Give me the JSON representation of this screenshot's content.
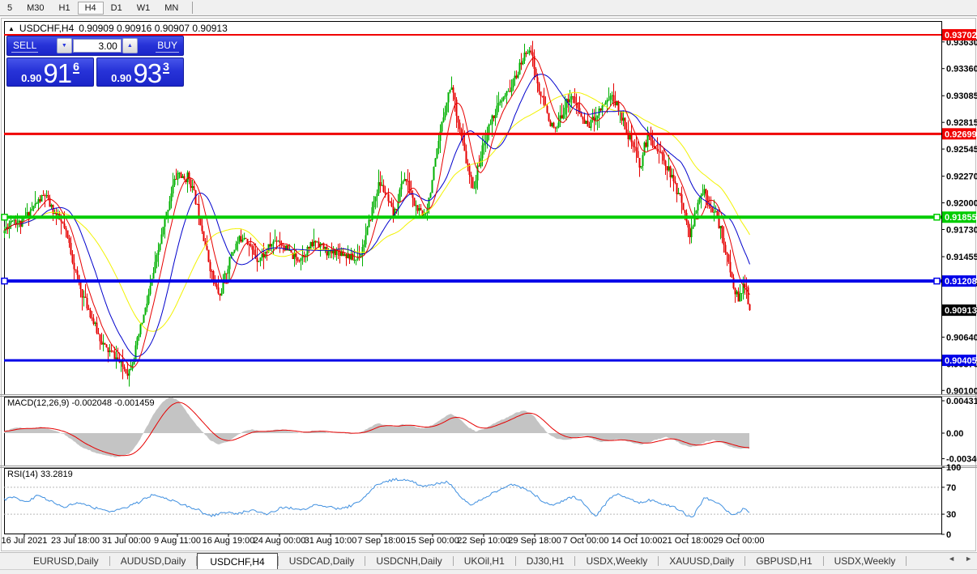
{
  "toolbar": {
    "items": [
      "5",
      "M30",
      "H1",
      "H4",
      "D1",
      "W1",
      "MN"
    ],
    "active": "H4"
  },
  "chart_header": {
    "collapse_icon": "▲",
    "title": "USDCHF,H4",
    "quotes": "0.90909 0.90916 0.90907 0.90913"
  },
  "trade_panel": {
    "sell_label": "SELL",
    "buy_label": "BUY",
    "volume": "3.00",
    "spinner_down": "▼",
    "spinner_up": "▲",
    "sell_price": {
      "prefix": "0.90",
      "big": "91",
      "pip": "6"
    },
    "buy_price": {
      "prefix": "0.90",
      "big": "93",
      "pip": "3"
    }
  },
  "tabs": {
    "items": [
      "EURUSD,Daily",
      "AUDUSD,Daily",
      "USDCHF,H4",
      "USDCAD,Daily",
      "USDCNH,Daily",
      "UKOil,H1",
      "DJ30,H1",
      "USDX,Weekly",
      "XAUUSD,Daily",
      "GBPUSD,H1",
      "USDX,Weekly"
    ],
    "active_index": 2,
    "scroll_left": "◄",
    "scroll_right": "►"
  },
  "chart_data": {
    "type": "candlestick",
    "symbol": "USDCHF",
    "timeframe": "H4",
    "open": "0.90909",
    "high": "0.90916",
    "low": "0.90907",
    "close": "0.90913",
    "last_close": 0.90913,
    "price_range": [
      0.9007,
      0.9378
    ],
    "x_labels": [
      "16 Jul 2021",
      "23 Jul 18:00",
      "31 Jul 00:00",
      "9 Aug 11:00",
      "16 Aug 19:00",
      "24 Aug 00:00",
      "31 Aug 10:00",
      "7 Sep 18:00",
      "15 Sep 00:00",
      "22 Sep 10:00",
      "29 Sep 18:00",
      "7 Oct 00:00",
      "14 Oct 10:00",
      "21 Oct 18:00",
      "29 Oct 00:00"
    ],
    "y_axis_ticks": [
      "0.93630",
      "0.93360",
      "0.93085",
      "0.92815",
      "0.92545",
      "0.92270",
      "0.92000",
      "0.91730",
      "0.91455",
      "0.91185",
      "0.90915",
      "0.90640",
      "0.90370",
      "0.90100"
    ],
    "candle_colors": {
      "bull": "#00b000",
      "bear": "#e60000"
    },
    "moving_averages": [
      {
        "name": "ma-fast",
        "period": 10,
        "color": "#e60000"
      },
      {
        "name": "ma-mid",
        "period": 24,
        "color": "#0000cc"
      },
      {
        "name": "ma-slow",
        "period": 48,
        "color": "#f2f200"
      }
    ],
    "hlines": [
      {
        "price": 0.93702,
        "label": "0.93702",
        "color": "#f00000",
        "w": 2,
        "handles": false
      },
      {
        "price": 0.92699,
        "label": "0.92699",
        "color": "#f00000",
        "w": 3,
        "handles": false
      },
      {
        "price": 0.91855,
        "label": "0.91855",
        "color": "#00cc00",
        "w": 4,
        "handles": true
      },
      {
        "price": 0.91208,
        "label": "0.91208",
        "color": "#0000e8",
        "w": 4,
        "handles": true
      },
      {
        "price": 0.90405,
        "label": "0.90405",
        "color": "#0000e8",
        "w": 3,
        "handles": false
      }
    ],
    "current_price": {
      "label": "0.90913",
      "bg": "#000000"
    },
    "price_anchors": [
      5,
      0.9172,
      15,
      0.9185,
      25,
      0.9178,
      35,
      0.919,
      45,
      0.92,
      55,
      0.9208,
      62,
      0.9196,
      70,
      0.9186,
      78,
      0.9176,
      85,
      0.9158,
      92,
      0.9132,
      100,
      0.911,
      110,
      0.909,
      120,
      0.9068,
      130,
      0.9052,
      140,
      0.9046,
      150,
      0.9035,
      158,
      0.9028,
      165,
      0.9045,
      172,
      0.907,
      180,
      0.9095,
      188,
      0.9125,
      196,
      0.9155,
      204,
      0.9185,
      212,
      0.9215,
      220,
      0.9232,
      226,
      0.9222,
      232,
      0.9228,
      240,
      0.9206,
      248,
      0.9178,
      256,
      0.9145,
      264,
      0.9118,
      271,
      0.9105,
      278,
      0.9128,
      286,
      0.915,
      294,
      0.9162,
      302,
      0.9168,
      310,
      0.9152,
      318,
      0.9143,
      326,
      0.9148,
      334,
      0.9158,
      342,
      0.9164,
      350,
      0.9156,
      358,
      0.9148,
      366,
      0.9143,
      374,
      0.9148,
      382,
      0.9155,
      390,
      0.9162,
      398,
      0.9155,
      406,
      0.9148,
      414,
      0.9152,
      422,
      0.915,
      430,
      0.9146,
      438,
      0.9142,
      446,
      0.9152,
      454,
      0.9175,
      462,
      0.9205,
      468,
      0.922,
      474,
      0.9212,
      480,
      0.9198,
      486,
      0.9186,
      492,
      0.9208,
      498,
      0.9227,
      504,
      0.9217,
      510,
      0.92,
      516,
      0.9192,
      522,
      0.9186,
      528,
      0.92,
      534,
      0.9228,
      540,
      0.9255,
      546,
      0.9284,
      552,
      0.9308,
      557,
      0.932,
      562,
      0.9297,
      568,
      0.927,
      574,
      0.9246,
      580,
      0.9224,
      585,
      0.9216,
      590,
      0.9238,
      596,
      0.9257,
      602,
      0.9274,
      608,
      0.9288,
      614,
      0.9297,
      620,
      0.9304,
      626,
      0.9311,
      632,
      0.932,
      638,
      0.9331,
      644,
      0.9344,
      650,
      0.9354,
      654,
      0.9359,
      658,
      0.9341,
      662,
      0.9323,
      666,
      0.9311,
      670,
      0.9302,
      675,
      0.9291,
      680,
      0.9279,
      685,
      0.9272,
      690,
      0.9282,
      695,
      0.9294,
      700,
      0.9304,
      705,
      0.9309,
      710,
      0.93,
      715,
      0.9291,
      720,
      0.9283,
      725,
      0.9278,
      730,
      0.9283,
      735,
      0.9289,
      740,
      0.9295,
      745,
      0.9301,
      750,
      0.9306,
      755,
      0.9308,
      760,
      0.93,
      765,
      0.9291,
      770,
      0.9281,
      775,
      0.9269,
      780,
      0.9259,
      785,
      0.9249,
      790,
      0.9236,
      795,
      0.9257,
      800,
      0.9267,
      805,
      0.9262,
      810,
      0.9255,
      815,
      0.9249,
      820,
      0.9243,
      825,
      0.9233,
      830,
      0.9223,
      835,
      0.9213,
      840,
      0.9203,
      845,
      0.9193,
      850,
      0.9166,
      855,
      0.9178,
      860,
      0.9196,
      865,
      0.9208,
      868,
      0.9214,
      872,
      0.9206,
      876,
      0.9199,
      880,
      0.9193,
      884,
      0.9186,
      888,
      0.9176,
      892,
      0.9163,
      896,
      0.9149,
      900,
      0.9133,
      904,
      0.9119,
      908,
      0.9109,
      912,
      0.9101,
      916,
      0.9112,
      920,
      0.9121,
      923,
      0.9097,
      925,
      0.90913
    ],
    "macd": {
      "label": "MACD(12,26,9)",
      "values": "-0.002048 -0.001459",
      "axis": [
        "0.00431",
        "0.00",
        "-0.003405"
      ],
      "hist_color": "#c4c4c4",
      "signal_color": "#e60000",
      "anchors": [
        5,
        0.0002,
        20,
        0.0008,
        35,
        0.0006,
        50,
        0.0008,
        65,
        0.0004,
        80,
        -0.0002,
        90,
        -0.001,
        100,
        -0.0018,
        115,
        -0.0025,
        130,
        -0.003,
        145,
        -0.0032,
        160,
        -0.0027,
        170,
        -0.0014,
        180,
        0.0006,
        190,
        0.0026,
        200,
        0.0041,
        210,
        0.0048,
        220,
        0.0044,
        230,
        0.0029,
        240,
        0.0014,
        250,
        0.0002,
        260,
        -0.001,
        270,
        -0.0015,
        280,
        -0.0012,
        290,
        -0.0005,
        300,
        0.0002,
        312,
        0.0005,
        324,
        0.0002,
        336,
        0.0004,
        348,
        0.0005,
        360,
        0.0002,
        372,
        0.0,
        384,
        0.0003,
        396,
        0.0003,
        408,
        0.0,
        420,
        0.0001,
        432,
        -0.0001,
        444,
        0.0001,
        456,
        0.0007,
        466,
        0.0013,
        476,
        0.0011,
        488,
        0.0008,
        498,
        0.0012,
        508,
        0.001,
        520,
        0.0006,
        532,
        0.001,
        544,
        0.0018,
        556,
        0.0026,
        566,
        0.002,
        578,
        0.0008,
        588,
        0.0002,
        600,
        0.0007,
        612,
        0.0014,
        624,
        0.002,
        636,
        0.0027,
        648,
        0.003,
        658,
        0.0024,
        668,
        0.001,
        678,
        -0.0002,
        688,
        -0.0008,
        700,
        -0.0009,
        712,
        -0.0006,
        722,
        -0.0003,
        732,
        -0.0008,
        742,
        -0.0012,
        752,
        -0.001,
        762,
        -0.0008,
        772,
        -0.001,
        782,
        -0.0013,
        792,
        -0.0015,
        802,
        -0.0012,
        812,
        -0.0008,
        822,
        -0.0005,
        832,
        -0.0009,
        842,
        -0.0015,
        852,
        -0.0019,
        862,
        -0.0016,
        872,
        -0.0011,
        882,
        -0.0009,
        892,
        -0.0013,
        902,
        -0.0018,
        912,
        -0.0021,
        925,
        -0.00205
      ]
    },
    "rsi": {
      "label": "RSI(14)",
      "value": "33.2819",
      "axis": [
        "100",
        "70",
        "30",
        "0"
      ],
      "levels": [
        70,
        30
      ],
      "color": "#4090e0",
      "anchors": [
        5,
        52,
        20,
        55,
        32,
        48,
        45,
        57,
        55,
        54,
        68,
        46,
        80,
        40,
        95,
        47,
        108,
        42,
        122,
        38,
        135,
        34,
        148,
        37,
        160,
        42,
        172,
        48,
        182,
        56,
        192,
        60,
        202,
        55,
        212,
        50,
        222,
        46,
        232,
        42,
        242,
        38,
        252,
        31,
        262,
        28,
        272,
        31,
        282,
        33,
        292,
        30,
        302,
        34,
        312,
        36,
        322,
        32,
        332,
        30,
        342,
        37,
        352,
        41,
        362,
        38,
        372,
        35,
        382,
        41,
        392,
        45,
        402,
        42,
        412,
        39,
        422,
        38,
        432,
        42,
        442,
        47,
        452,
        58,
        462,
        70,
        472,
        77,
        482,
        80,
        492,
        82,
        502,
        80,
        512,
        77,
        522,
        70,
        532,
        73,
        542,
        76,
        552,
        79,
        562,
        66,
        572,
        52,
        582,
        43,
        590,
        49,
        600,
        56,
        610,
        63,
        620,
        68,
        630,
        75,
        638,
        71,
        648,
        68,
        658,
        61,
        668,
        51,
        678,
        43,
        688,
        46,
        698,
        52,
        708,
        55,
        718,
        50,
        728,
        35,
        736,
        28,
        744,
        40,
        754,
        55,
        762,
        61,
        770,
        57,
        780,
        52,
        790,
        46,
        800,
        51,
        810,
        48,
        820,
        45,
        830,
        41,
        840,
        36,
        848,
        28,
        855,
        26,
        864,
        44,
        870,
        55,
        876,
        52,
        884,
        48,
        892,
        41,
        900,
        33,
        908,
        28,
        914,
        34,
        920,
        40,
        925,
        33.3
      ]
    }
  }
}
